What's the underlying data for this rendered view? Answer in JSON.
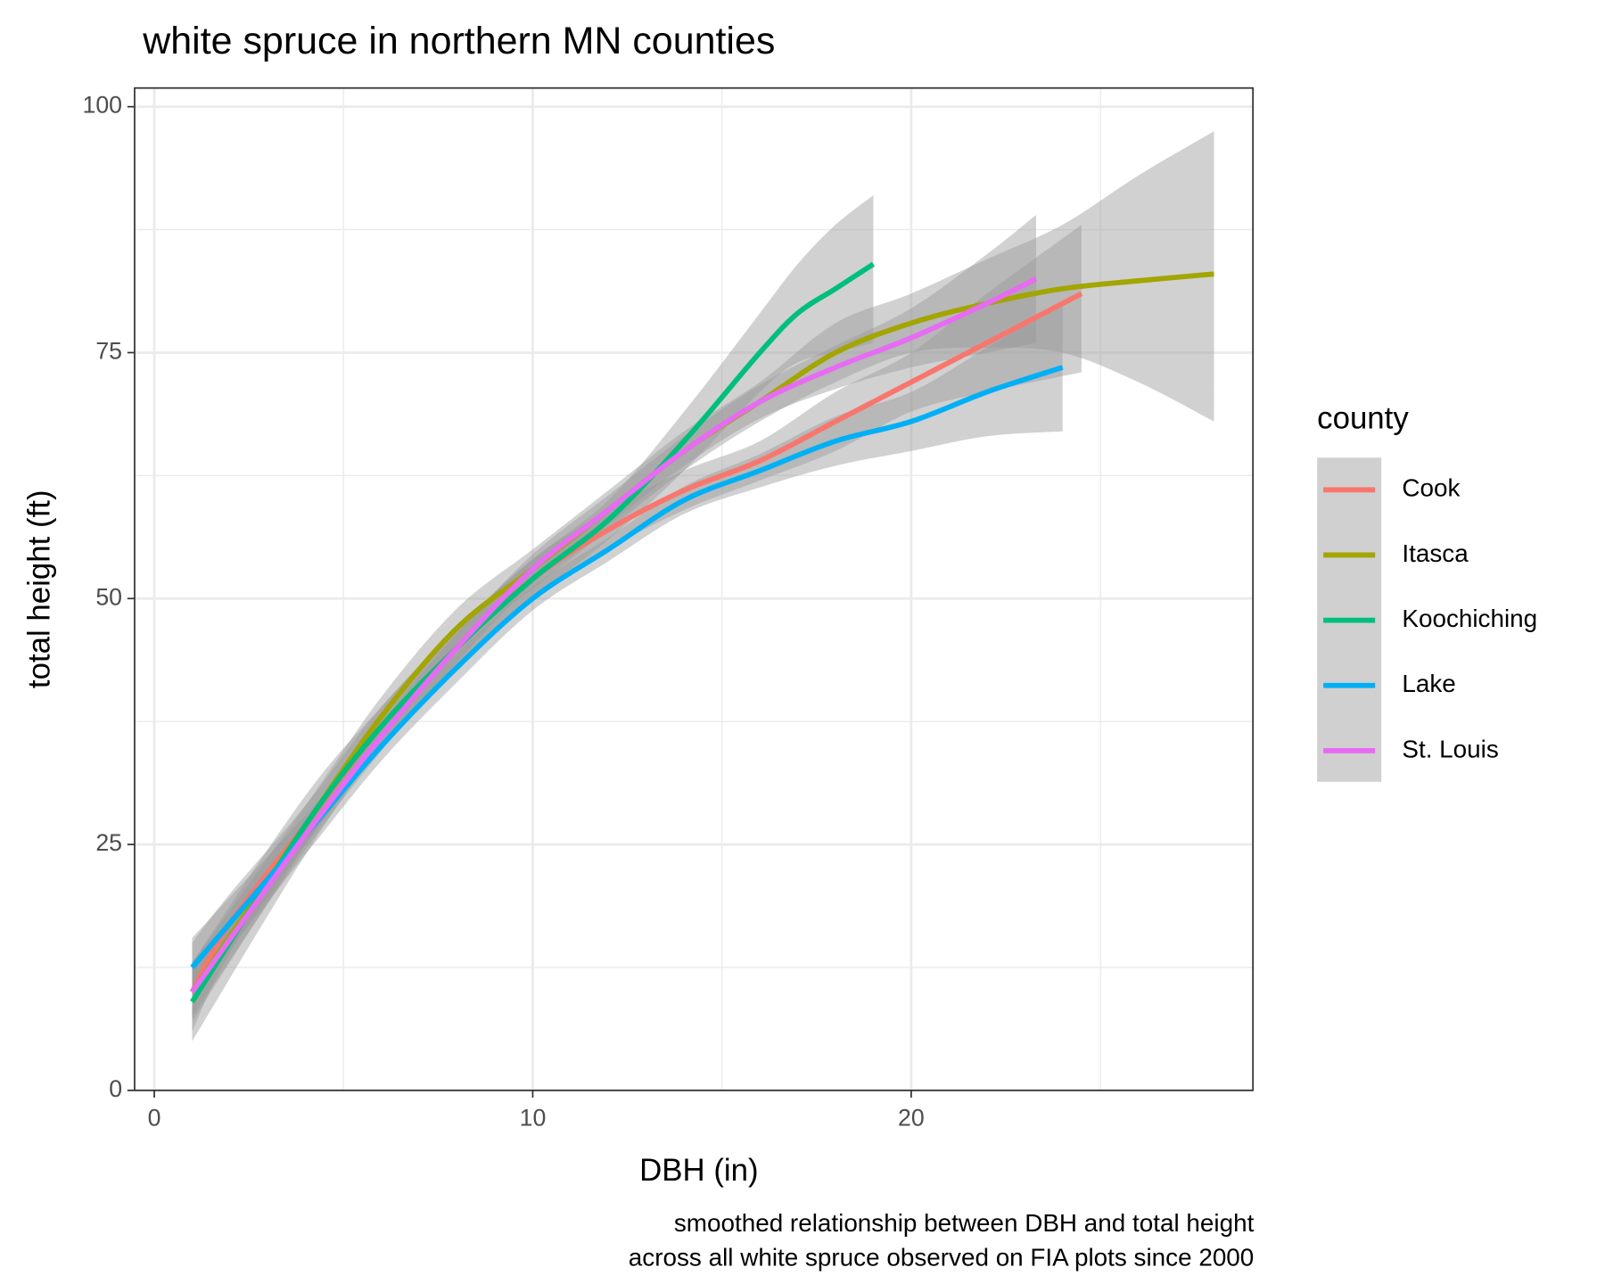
{
  "chart_data": {
    "type": "line",
    "title": "white spruce in northern MN counties",
    "x_label": "DBH (in)",
    "y_label": "total height (ft)",
    "caption": [
      "smoothed relationship between DBH and total height",
      "across all white spruce observed on FIA plots since 2000"
    ],
    "legend_title": "county",
    "xlim": [
      -0.52,
      29.03
    ],
    "ylim": [
      0,
      101.9
    ],
    "xticks": [
      0,
      10,
      20
    ],
    "yticks": [
      0,
      25,
      50,
      75,
      100
    ],
    "x_minor_grid": [
      5,
      15,
      25
    ],
    "y_minor_grid": [
      12.5,
      37.5,
      62.5,
      87.5
    ],
    "grid": true,
    "series": [
      {
        "name": "Cook",
        "color": "#F8766D",
        "x": [
          1,
          2,
          4,
          6,
          8,
          10,
          12,
          14,
          16,
          18,
          20,
          22,
          24.5
        ],
        "values": [
          10,
          17,
          27,
          37,
          45,
          52,
          57,
          61,
          64,
          68,
          72,
          76,
          81
        ],
        "lower": [
          6,
          14,
          25,
          35,
          43,
          50,
          55,
          59,
          62,
          65,
          69,
          71,
          73
        ],
        "upper": [
          15,
          20,
          29,
          39,
          47,
          54,
          59,
          63,
          66,
          71,
          75,
          81,
          88
        ]
      },
      {
        "name": "Itasca",
        "color": "#A3A500",
        "x": [
          1,
          4,
          6,
          8,
          10,
          12,
          14,
          16,
          18,
          20,
          22,
          24,
          26,
          28
        ],
        "values": [
          10,
          27,
          38,
          47,
          53,
          59,
          65,
          70,
          75,
          78,
          80,
          81.5,
          82.3,
          83
        ],
        "lower": [
          7,
          25,
          36,
          45,
          51,
          57,
          63,
          68,
          72,
          75,
          75.5,
          75,
          72,
          68
        ],
        "upper": [
          13,
          29,
          40,
          49,
          55,
          61,
          67,
          72,
          78,
          81,
          84.5,
          88,
          93,
          97.5
        ]
      },
      {
        "name": "Koochiching",
        "color": "#00BF7D",
        "x": [
          1,
          4,
          6,
          8,
          10,
          12,
          14,
          16,
          17,
          18,
          19
        ],
        "values": [
          9,
          27,
          37,
          45,
          52,
          58,
          66,
          75,
          79,
          81.5,
          84
        ],
        "lower": [
          5,
          24,
          35,
          43,
          50,
          56,
          63,
          71,
          74,
          75,
          76
        ],
        "upper": [
          13,
          30,
          39,
          47,
          54,
          60,
          69,
          79,
          84,
          88,
          91
        ]
      },
      {
        "name": "Lake",
        "color": "#00B0F6",
        "x": [
          1,
          4,
          6,
          8,
          10,
          12,
          14,
          16,
          18,
          20,
          22,
          24
        ],
        "values": [
          12.5,
          26,
          35,
          43,
          50,
          55,
          60,
          63,
          66,
          68,
          71,
          73.5
        ],
        "lower": [
          9.5,
          24,
          33.5,
          41.5,
          48.8,
          53.8,
          58.6,
          61.3,
          63.5,
          65,
          66.5,
          67
        ],
        "upper": [
          15.5,
          28,
          36.5,
          44.5,
          51.2,
          56.2,
          61.4,
          64.7,
          68.5,
          71,
          75.5,
          80
        ]
      },
      {
        "name": "St. Louis",
        "color": "#E76BF3",
        "x": [
          1,
          4,
          6,
          8,
          10,
          12,
          14,
          16,
          18,
          20,
          22,
          23.3
        ],
        "values": [
          10,
          26,
          36,
          45,
          53,
          59,
          65,
          70,
          73.5,
          76.5,
          80,
          82.5
        ],
        "lower": [
          7.5,
          24.5,
          34.5,
          43.5,
          51.5,
          57.5,
          63.5,
          68.3,
          71.3,
          73.5,
          75,
          76
        ],
        "upper": [
          12.5,
          27.5,
          37.5,
          46.5,
          54.5,
          60.5,
          66.5,
          71.7,
          75.7,
          79.5,
          85,
          89
        ]
      }
    ]
  }
}
